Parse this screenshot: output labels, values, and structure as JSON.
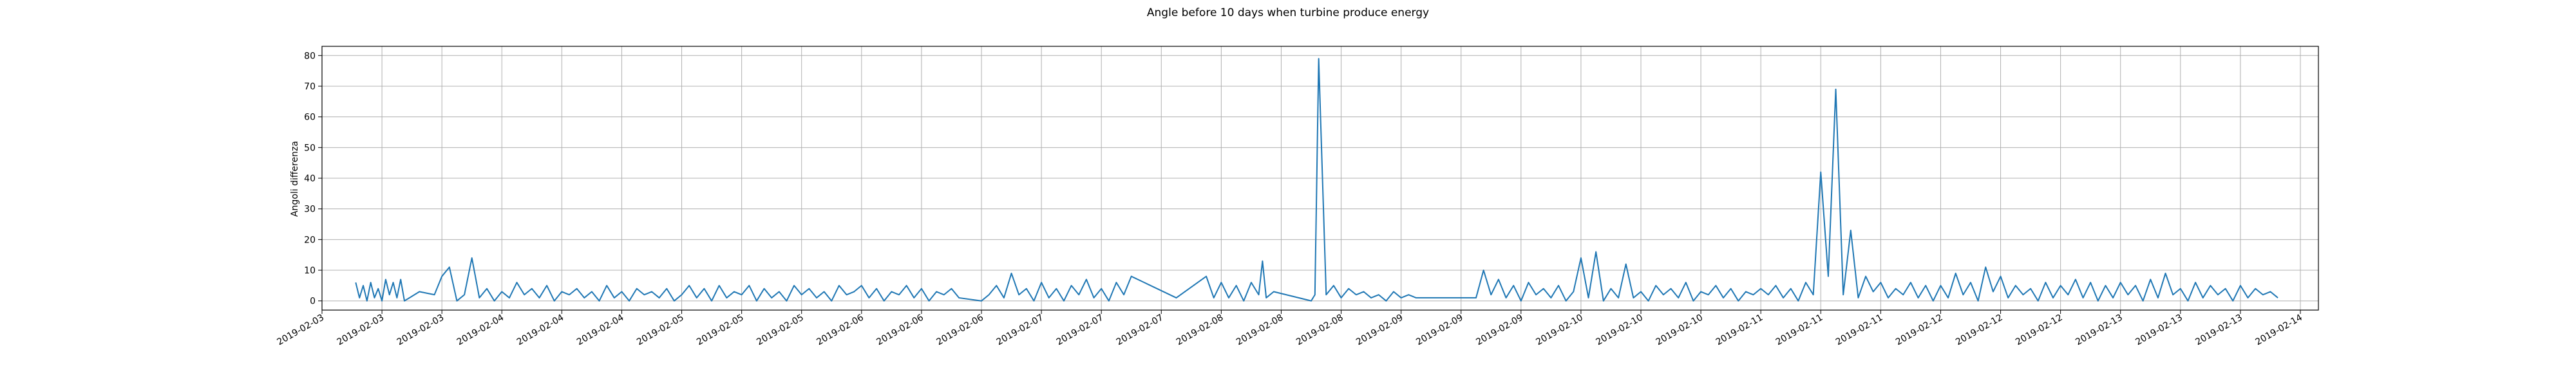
{
  "chart_data": {
    "type": "line",
    "title": "Angle before 10 days when turbine produce energy",
    "xlabel": "",
    "ylabel": "Angoli differenza",
    "grid": true,
    "line_color": "#1f77b4",
    "ylim": [
      -3,
      83
    ],
    "y_ticks": [
      0,
      10,
      20,
      30,
      40,
      50,
      60,
      70,
      80
    ],
    "x_tick_labels": [
      "2019-02-03",
      "2019-02-03",
      "2019-02-03",
      "2019-02-04",
      "2019-02-04",
      "2019-02-04",
      "2019-02-05",
      "2019-02-05",
      "2019-02-05",
      "2019-02-06",
      "2019-02-06",
      "2019-02-06",
      "2019-02-07",
      "2019-02-07",
      "2019-02-07",
      "2019-02-08",
      "2019-02-08",
      "2019-02-08",
      "2019-02-09",
      "2019-02-09",
      "2019-02-09",
      "2019-02-10",
      "2019-02-10",
      "2019-02-10",
      "2019-02-11",
      "2019-02-11",
      "2019-02-11",
      "2019-02-12",
      "2019-02-12",
      "2019-02-12",
      "2019-02-13",
      "2019-02-13",
      "2019-02-13",
      "2019-02-14"
    ],
    "series": [
      {
        "name": "",
        "x": [
          "2019-02-03 04:30",
          "2019-02-03 05:00",
          "2019-02-03 05:30",
          "2019-02-03 06:00",
          "2019-02-03 06:30",
          "2019-02-03 07:00",
          "2019-02-03 07:30",
          "2019-02-03 08:00",
          "2019-02-03 08:30",
          "2019-02-03 09:00",
          "2019-02-03 09:30",
          "2019-02-03 10:00",
          "2019-02-03 10:30",
          "2019-02-03 11:00",
          "2019-02-03 13:00",
          "2019-02-03 15:00",
          "2019-02-03 16:00",
          "2019-02-03 17:00",
          "2019-02-03 18:00",
          "2019-02-03 19:00",
          "2019-02-03 20:00",
          "2019-02-03 21:00",
          "2019-02-03 22:00",
          "2019-02-03 23:00",
          "2019-02-04 00:00",
          "2019-02-04 01:00",
          "2019-02-04 02:00",
          "2019-02-04 03:00",
          "2019-02-04 04:00",
          "2019-02-04 05:00",
          "2019-02-04 06:00",
          "2019-02-04 07:00",
          "2019-02-04 08:00",
          "2019-02-04 09:00",
          "2019-02-04 10:00",
          "2019-02-04 11:00",
          "2019-02-04 12:00",
          "2019-02-04 13:00",
          "2019-02-04 14:00",
          "2019-02-04 15:00",
          "2019-02-04 16:00",
          "2019-02-04 17:00",
          "2019-02-04 18:00",
          "2019-02-04 19:00",
          "2019-02-04 20:00",
          "2019-02-04 21:00",
          "2019-02-04 22:00",
          "2019-02-04 23:00",
          "2019-02-05 00:00",
          "2019-02-05 01:00",
          "2019-02-05 02:00",
          "2019-02-05 03:00",
          "2019-02-05 04:00",
          "2019-02-05 05:00",
          "2019-02-05 06:00",
          "2019-02-05 07:00",
          "2019-02-05 08:00",
          "2019-02-05 09:00",
          "2019-02-05 10:00",
          "2019-02-05 11:00",
          "2019-02-05 12:00",
          "2019-02-05 13:00",
          "2019-02-05 14:00",
          "2019-02-05 15:00",
          "2019-02-05 16:00",
          "2019-02-05 17:00",
          "2019-02-05 18:00",
          "2019-02-05 19:00",
          "2019-02-05 20:00",
          "2019-02-05 21:00",
          "2019-02-05 22:00",
          "2019-02-05 23:00",
          "2019-02-06 00:00",
          "2019-02-06 01:00",
          "2019-02-06 02:00",
          "2019-02-06 03:00",
          "2019-02-06 04:00",
          "2019-02-06 05:00",
          "2019-02-06 06:00",
          "2019-02-06 07:00",
          "2019-02-06 08:00",
          "2019-02-06 09:00",
          "2019-02-06 10:00",
          "2019-02-06 11:00",
          "2019-02-06 12:00",
          "2019-02-06 13:00",
          "2019-02-06 16:00",
          "2019-02-06 17:00",
          "2019-02-06 18:00",
          "2019-02-06 19:00",
          "2019-02-06 20:00",
          "2019-02-06 21:00",
          "2019-02-06 22:00",
          "2019-02-06 23:00",
          "2019-02-07 00:00",
          "2019-02-07 01:00",
          "2019-02-07 02:00",
          "2019-02-07 03:00",
          "2019-02-07 04:00",
          "2019-02-07 05:00",
          "2019-02-07 06:00",
          "2019-02-07 07:00",
          "2019-02-07 08:00",
          "2019-02-07 09:00",
          "2019-02-07 10:00",
          "2019-02-07 11:00",
          "2019-02-07 12:00",
          "2019-02-07 18:00",
          "2019-02-07 22:00",
          "2019-02-07 23:00",
          "2019-02-08 00:00",
          "2019-02-08 01:00",
          "2019-02-08 02:00",
          "2019-02-08 03:00",
          "2019-02-08 04:00",
          "2019-02-08 05:00",
          "2019-02-08 05:30",
          "2019-02-08 06:00",
          "2019-02-08 07:00",
          "2019-02-08 12:00",
          "2019-02-08 12:30",
          "2019-02-08 13:00",
          "2019-02-08 14:00",
          "2019-02-08 15:00",
          "2019-02-08 16:00",
          "2019-02-08 17:00",
          "2019-02-08 18:00",
          "2019-02-08 19:00",
          "2019-02-08 20:00",
          "2019-02-08 21:00",
          "2019-02-08 22:00",
          "2019-02-08 23:00",
          "2019-02-09 00:00",
          "2019-02-09 01:00",
          "2019-02-09 02:00",
          "2019-02-09 10:00",
          "2019-02-09 11:00",
          "2019-02-09 12:00",
          "2019-02-09 13:00",
          "2019-02-09 14:00",
          "2019-02-09 15:00",
          "2019-02-09 16:00",
          "2019-02-09 17:00",
          "2019-02-09 18:00",
          "2019-02-09 19:00",
          "2019-02-09 20:00",
          "2019-02-09 21:00",
          "2019-02-09 22:00",
          "2019-02-09 23:00",
          "2019-02-10 00:00",
          "2019-02-10 01:00",
          "2019-02-10 02:00",
          "2019-02-10 03:00",
          "2019-02-10 04:00",
          "2019-02-10 05:00",
          "2019-02-10 06:00",
          "2019-02-10 07:00",
          "2019-02-10 08:00",
          "2019-02-10 09:00",
          "2019-02-10 10:00",
          "2019-02-10 11:00",
          "2019-02-10 12:00",
          "2019-02-10 13:00",
          "2019-02-10 14:00",
          "2019-02-10 15:00",
          "2019-02-10 16:00",
          "2019-02-10 17:00",
          "2019-02-10 18:00",
          "2019-02-10 19:00",
          "2019-02-10 20:00",
          "2019-02-10 21:00",
          "2019-02-10 22:00",
          "2019-02-10 23:00",
          "2019-02-11 00:00",
          "2019-02-11 01:00",
          "2019-02-11 02:00",
          "2019-02-11 03:00",
          "2019-02-11 04:00",
          "2019-02-11 05:00",
          "2019-02-11 06:00",
          "2019-02-11 07:00",
          "2019-02-11 08:00",
          "2019-02-11 09:00",
          "2019-02-11 10:00",
          "2019-02-11 11:00",
          "2019-02-11 12:00",
          "2019-02-11 13:00",
          "2019-02-11 14:00",
          "2019-02-11 15:00",
          "2019-02-11 16:00",
          "2019-02-11 17:00",
          "2019-02-11 18:00",
          "2019-02-11 19:00",
          "2019-02-11 20:00",
          "2019-02-11 21:00",
          "2019-02-11 22:00",
          "2019-02-11 23:00",
          "2019-02-12 00:00",
          "2019-02-12 01:00",
          "2019-02-12 02:00",
          "2019-02-12 03:00",
          "2019-02-12 04:00",
          "2019-02-12 05:00",
          "2019-02-12 06:00",
          "2019-02-12 07:00",
          "2019-02-12 08:00",
          "2019-02-12 09:00",
          "2019-02-12 10:00",
          "2019-02-12 11:00",
          "2019-02-12 12:00",
          "2019-02-12 13:00",
          "2019-02-12 14:00",
          "2019-02-12 15:00",
          "2019-02-12 16:00",
          "2019-02-12 17:00",
          "2019-02-12 18:00",
          "2019-02-12 19:00",
          "2019-02-12 20:00",
          "2019-02-12 21:00",
          "2019-02-12 22:00",
          "2019-02-12 23:00",
          "2019-02-13 00:00",
          "2019-02-13 01:00",
          "2019-02-13 02:00",
          "2019-02-13 03:00",
          "2019-02-13 04:00",
          "2019-02-13 05:00",
          "2019-02-13 06:00",
          "2019-02-13 07:00",
          "2019-02-13 08:00",
          "2019-02-13 09:00",
          "2019-02-13 10:00",
          "2019-02-13 11:00",
          "2019-02-13 12:00",
          "2019-02-13 13:00",
          "2019-02-13 14:00",
          "2019-02-13 15:00",
          "2019-02-13 16:00",
          "2019-02-13 17:00",
          "2019-02-13 18:00",
          "2019-02-13 19:00",
          "2019-02-13 20:00",
          "2019-02-13 21:00"
        ],
        "y": [
          6,
          1,
          5,
          0,
          6,
          1,
          4,
          0,
          7,
          2,
          6,
          1,
          7,
          0,
          3,
          2,
          8,
          11,
          0,
          2,
          14,
          1,
          4,
          0,
          3,
          1,
          6,
          2,
          4,
          1,
          5,
          0,
          3,
          2,
          4,
          1,
          3,
          0,
          5,
          1,
          3,
          0,
          4,
          2,
          3,
          1,
          4,
          0,
          2,
          5,
          1,
          4,
          0,
          5,
          1,
          3,
          2,
          5,
          0,
          4,
          1,
          3,
          0,
          5,
          2,
          4,
          1,
          3,
          0,
          5,
          2,
          3,
          5,
          1,
          4,
          0,
          3,
          2,
          5,
          1,
          4,
          0,
          3,
          2,
          4,
          1,
          0,
          2,
          5,
          1,
          9,
          2,
          4,
          0,
          6,
          1,
          4,
          0,
          5,
          2,
          7,
          1,
          4,
          0,
          6,
          2,
          8,
          1,
          8,
          1,
          6,
          1,
          5,
          0,
          6,
          2,
          13,
          1,
          3,
          0,
          2,
          79,
          2,
          5,
          1,
          4,
          2,
          3,
          1,
          2,
          0,
          3,
          1,
          2,
          1,
          1,
          10,
          2,
          7,
          1,
          5,
          0,
          6,
          2,
          4,
          1,
          5,
          0,
          3,
          14,
          1,
          16,
          0,
          4,
          1,
          12,
          1,
          3,
          0,
          5,
          2,
          4,
          1,
          6,
          0,
          3,
          2,
          5,
          1,
          4,
          0,
          3,
          2,
          4,
          2,
          5,
          1,
          4,
          0,
          6,
          2,
          42,
          8,
          69,
          2,
          23,
          1,
          8,
          3,
          6,
          1,
          4,
          2,
          6,
          1,
          5,
          0,
          5,
          1,
          9,
          2,
          6,
          0,
          11,
          3,
          8,
          1,
          5,
          2,
          4,
          0,
          6,
          1,
          5,
          2,
          7,
          1,
          6,
          0,
          5,
          1,
          6,
          2,
          5,
          0,
          7,
          1,
          9,
          2,
          4,
          0,
          6,
          1,
          5,
          2,
          4,
          0,
          5,
          1,
          4,
          2,
          3,
          1
        ]
      }
    ]
  }
}
